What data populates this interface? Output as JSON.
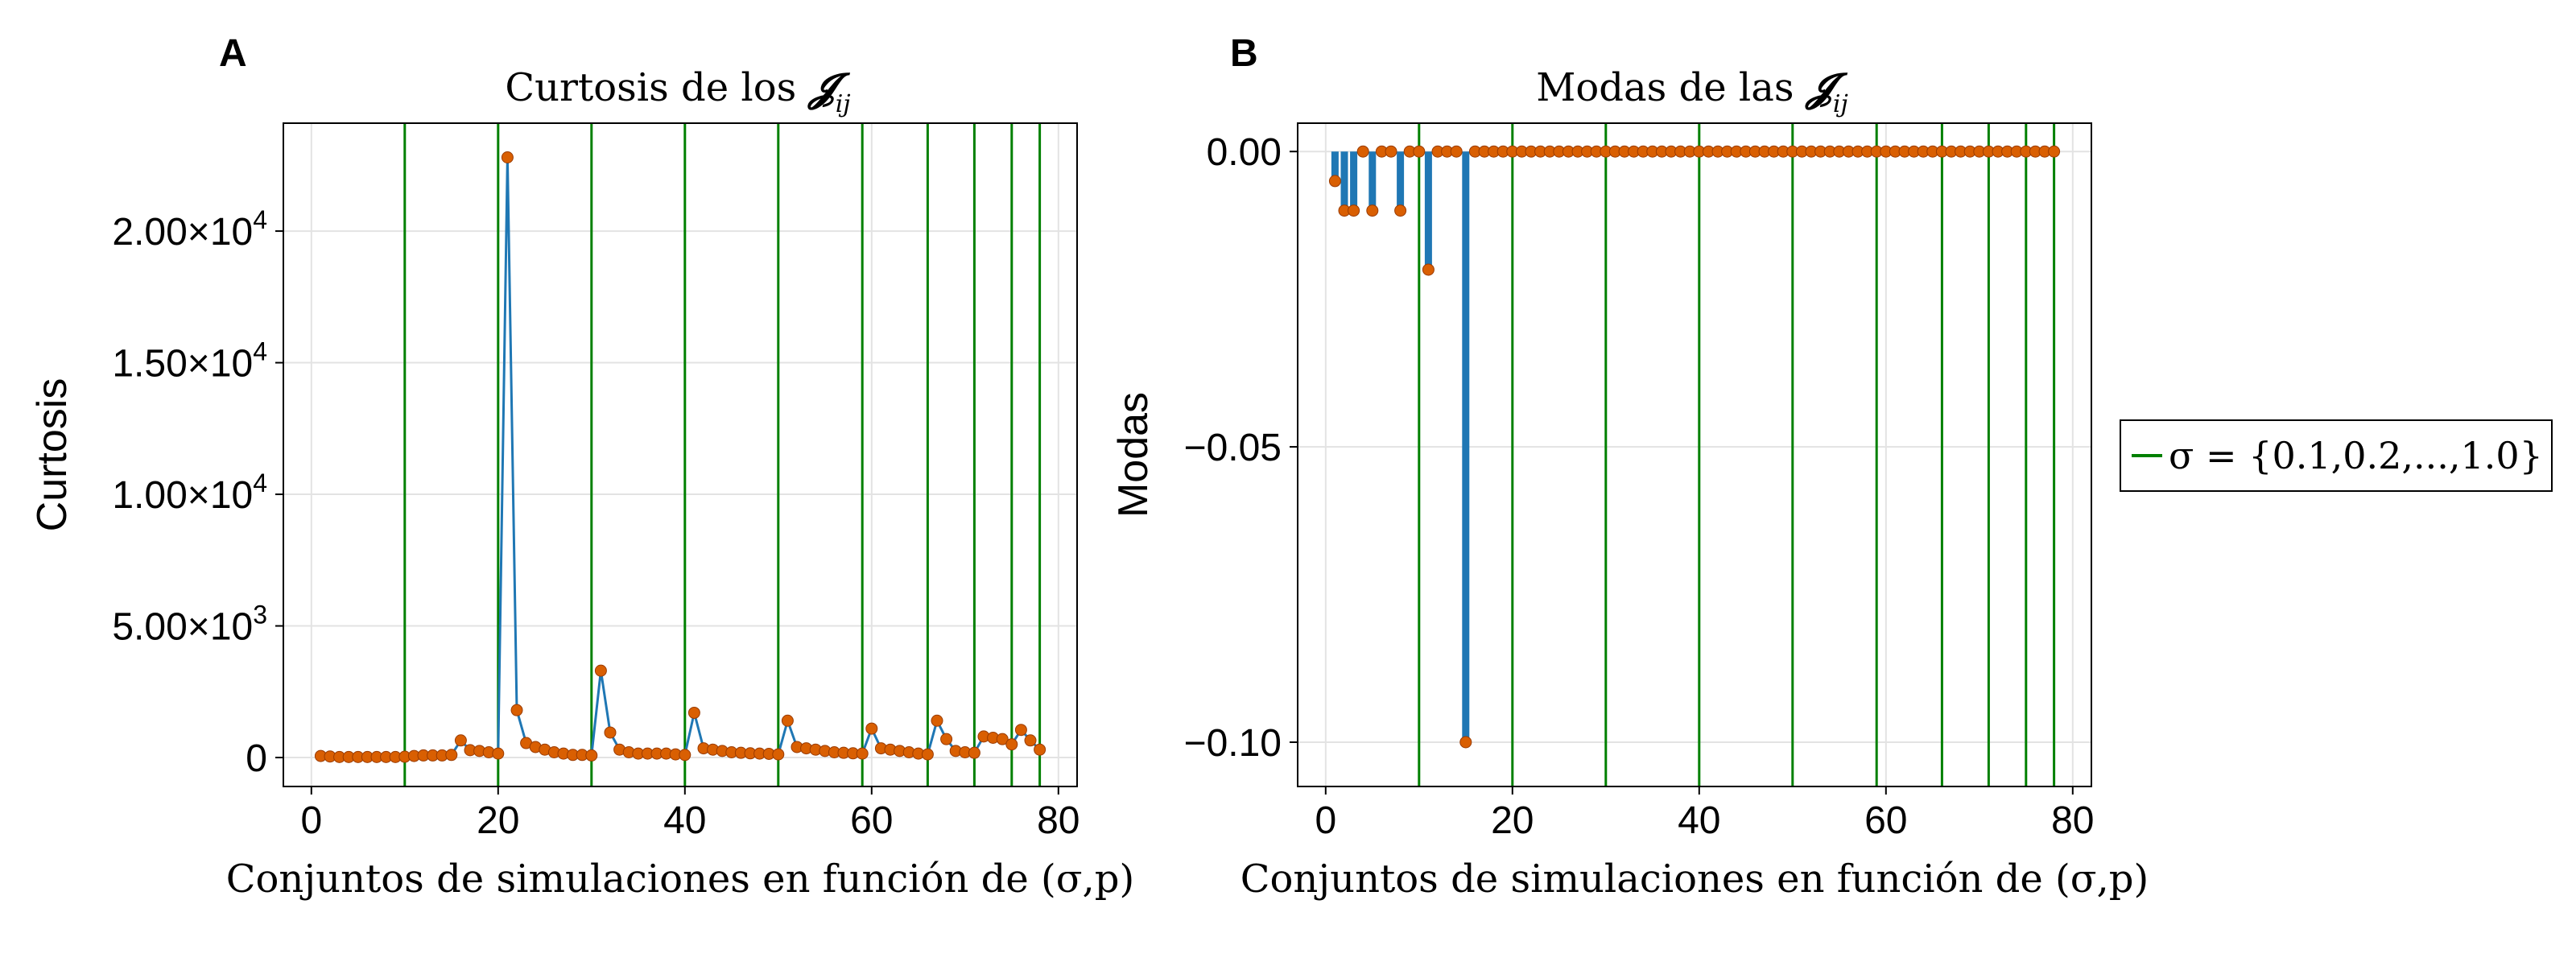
{
  "chart_data": [
    {
      "panel_label": "A",
      "type": "line",
      "title_text": "Curtosis de los ",
      "title_symbol": "𝓙",
      "title_subscript": "ij",
      "xlabel": "Conjuntos de simulaciones en función de (σ,p)",
      "ylabel": "Curtosis",
      "xlim": [
        -3,
        82
      ],
      "ylim": [
        -1100,
        24100
      ],
      "grid": true,
      "xticks": [
        0,
        20,
        40,
        60,
        80
      ],
      "xtick_labels": [
        "0",
        "20",
        "40",
        "60",
        "80"
      ],
      "yticks": [
        0,
        5000,
        10000,
        15000,
        20000
      ],
      "ytick_labels": [
        {
          "main": "0",
          "exp": ""
        },
        {
          "main": "5.00×10",
          "exp": "3"
        },
        {
          "main": "1.00×10",
          "exp": "4"
        },
        {
          "main": "1.50×10",
          "exp": "4"
        },
        {
          "main": "2.00×10",
          "exp": "4"
        }
      ],
      "vlines": [
        10,
        20,
        30,
        40,
        50,
        59,
        66,
        71,
        75,
        78
      ],
      "line_color": "#1f77b4",
      "marker_color": "#d95f02",
      "vline_color": "#008000",
      "x": [
        1,
        2,
        3,
        4,
        5,
        6,
        7,
        8,
        9,
        10,
        11,
        12,
        13,
        14,
        15,
        16,
        17,
        18,
        19,
        20,
        21,
        22,
        23,
        24,
        25,
        26,
        27,
        28,
        29,
        30,
        31,
        32,
        33,
        34,
        35,
        36,
        37,
        38,
        39,
        40,
        41,
        42,
        43,
        44,
        45,
        46,
        47,
        48,
        49,
        50,
        51,
        52,
        53,
        54,
        55,
        56,
        57,
        58,
        59,
        60,
        61,
        62,
        63,
        64,
        65,
        66,
        67,
        68,
        69,
        70,
        71,
        72,
        73,
        74,
        75,
        76,
        77,
        78
      ],
      "y": [
        60,
        40,
        20,
        20,
        20,
        20,
        20,
        20,
        20,
        30,
        60,
        80,
        80,
        80,
        100,
        650,
        280,
        250,
        200,
        150,
        22800,
        1800,
        550,
        400,
        300,
        200,
        150,
        100,
        100,
        80,
        3300,
        950,
        300,
        200,
        150,
        150,
        150,
        150,
        120,
        100,
        1700,
        350,
        300,
        250,
        200,
        180,
        160,
        150,
        140,
        120,
        1400,
        400,
        350,
        300,
        250,
        200,
        180,
        160,
        150,
        1100,
        350,
        300,
        250,
        200,
        150,
        120,
        1400,
        700,
        250,
        200,
        180,
        800,
        750,
        700,
        500,
        1050,
        650,
        300
      ]
    },
    {
      "panel_label": "B",
      "type": "stem",
      "title_text": "Modas de las ",
      "title_symbol": "𝓙",
      "title_subscript": "ij",
      "xlabel": "Conjuntos de simulaciones en función de (σ,p)",
      "ylabel": "Modas",
      "xlim": [
        -3,
        82
      ],
      "ylim": [
        -0.1075,
        0.0048
      ],
      "grid": true,
      "xticks": [
        0,
        20,
        40,
        60,
        80
      ],
      "xtick_labels": [
        "0",
        "20",
        "40",
        "60",
        "80"
      ],
      "yticks": [
        0,
        -0.05,
        -0.1
      ],
      "ytick_labels": [
        "0.00",
        "−0.05",
        "−0.10"
      ],
      "vlines": [
        10,
        20,
        30,
        40,
        50,
        59,
        66,
        71,
        75,
        78
      ],
      "stem_color": "#1f77b4",
      "marker_color": "#d95f02",
      "vline_color": "#008000",
      "x": [
        1,
        2,
        3,
        4,
        5,
        6,
        7,
        8,
        9,
        10,
        11,
        12,
        13,
        14,
        15,
        16,
        17,
        18,
        19,
        20,
        21,
        22,
        23,
        24,
        25,
        26,
        27,
        28,
        29,
        30,
        31,
        32,
        33,
        34,
        35,
        36,
        37,
        38,
        39,
        40,
        41,
        42,
        43,
        44,
        45,
        46,
        47,
        48,
        49,
        50,
        51,
        52,
        53,
        54,
        55,
        56,
        57,
        58,
        59,
        60,
        61,
        62,
        63,
        64,
        65,
        66,
        67,
        68,
        69,
        70,
        71,
        72,
        73,
        74,
        75,
        76,
        77,
        78
      ],
      "y": [
        -0.005,
        -0.01,
        -0.01,
        0,
        -0.01,
        0,
        0,
        -0.01,
        0,
        0,
        -0.02,
        0,
        0,
        0,
        -0.1,
        0,
        0,
        0,
        0,
        0,
        0,
        0,
        0,
        0,
        0,
        0,
        0,
        0,
        0,
        0,
        0,
        0,
        0,
        0,
        0,
        0,
        0,
        0,
        0,
        0,
        0,
        0,
        0,
        0,
        0,
        0,
        0,
        0,
        0,
        0,
        0,
        0,
        0,
        0,
        0,
        0,
        0,
        0,
        0,
        0,
        0,
        0,
        0,
        0,
        0,
        0,
        0,
        0,
        0,
        0,
        0,
        0,
        0,
        0,
        0,
        0,
        0,
        0
      ]
    }
  ],
  "legend": {
    "text": "σ = {0.1,0.2,...,1.0}",
    "color": "#008000",
    "placement": "right"
  }
}
